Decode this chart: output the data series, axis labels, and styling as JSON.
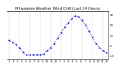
{
  "title": "Milwaukee Weather Wind Chill (Last 24 Hours)",
  "x_labels": [
    "1",
    "",
    "",
    "2",
    "",
    "",
    "3",
    "",
    "",
    "4",
    "",
    "",
    "5",
    "",
    "",
    "6",
    "",
    "",
    "7",
    "",
    "",
    "8",
    "",
    "",
    "9",
    "",
    "",
    "10",
    "",
    "",
    "11",
    "",
    "",
    "12",
    "",
    "",
    "1",
    "",
    "",
    "2",
    "",
    "",
    "3",
    "",
    "",
    "4",
    "",
    "",
    "5",
    "",
    "",
    "6",
    "",
    "",
    "7",
    "",
    "",
    "8",
    "",
    "",
    "9",
    "",
    "",
    "10",
    "",
    "",
    "11",
    "",
    "",
    "12"
  ],
  "x_tick_labels": [
    "1",
    "2",
    "3",
    "4",
    "5",
    "6",
    "7",
    "8",
    "9",
    "10",
    "11",
    "12",
    "1",
    "2",
    "3",
    "4",
    "5",
    "6",
    "7",
    "8",
    "9",
    "10",
    "11",
    "12"
  ],
  "y_values": [
    5,
    3,
    1,
    -2,
    -6,
    -9,
    -9,
    -9,
    -9,
    -9,
    -8,
    -5,
    -2,
    2,
    7,
    13,
    18,
    22,
    26,
    29,
    28,
    25,
    20,
    14,
    8,
    2,
    -2,
    -5,
    -7
  ],
  "y_tick_values": [
    30,
    20,
    10,
    0,
    -10
  ],
  "ylim": [
    -13,
    34
  ],
  "xlim_min": 0,
  "xlim_max": 28,
  "line_color": "#0000cc",
  "marker_size": 1.2,
  "line_style": ":",
  "line_width": 0.8,
  "bg_color": "#ffffff",
  "grid_color": "#bbbbbb",
  "title_fontsize": 3.8,
  "tick_fontsize": 3.0,
  "ylabel_fontsize": 3.0,
  "grid_x_positions": [
    0,
    3,
    6,
    9,
    12,
    15,
    18,
    21,
    24,
    27
  ]
}
